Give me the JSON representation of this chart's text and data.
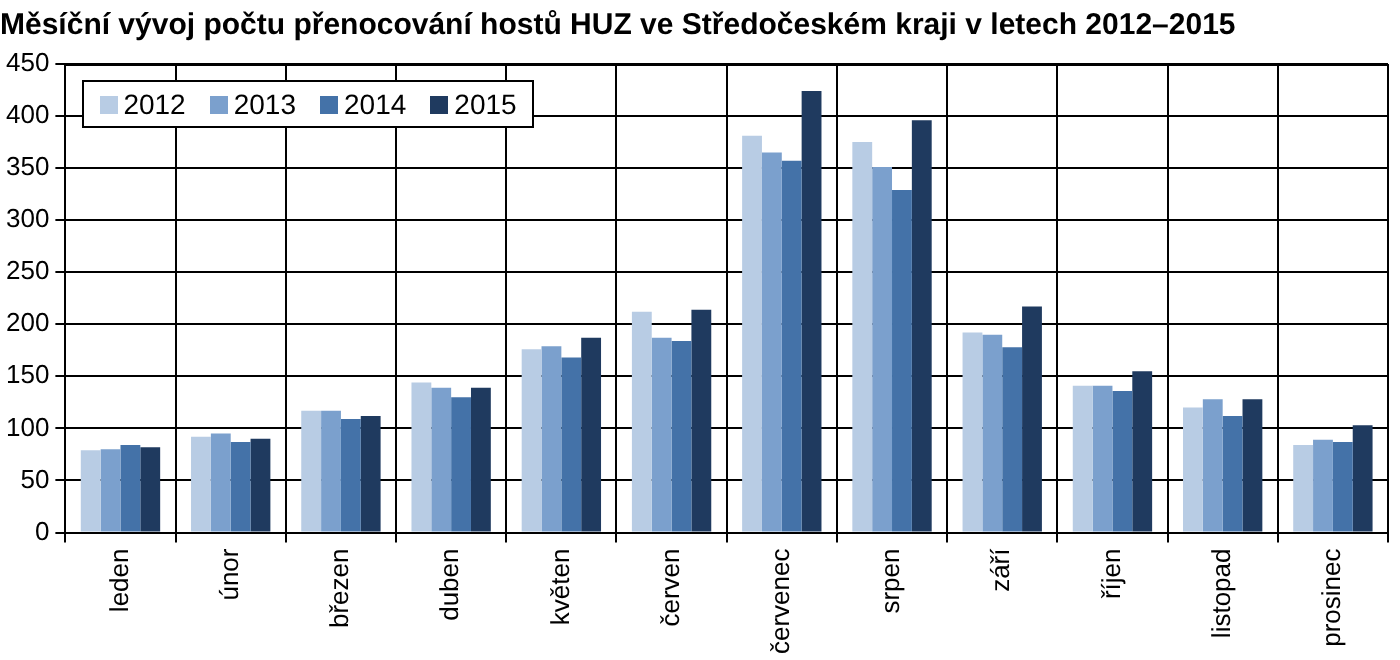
{
  "chart_data": {
    "type": "bar",
    "title": "Měsíční vývoj počtu přenocování hostů HUZ ve Středočeském kraji v letech 2012–2015",
    "categories": [
      "leden",
      "únor",
      "březen",
      "duben",
      "květen",
      "červen",
      "červenec",
      "srpen",
      "září",
      "říjen",
      "listopad",
      "prosinec"
    ],
    "series": [
      {
        "name": "2012",
        "color": "#b8cce4",
        "values": [
          79,
          92,
          117,
          144,
          176,
          212,
          381,
          375,
          192,
          141,
          120,
          84
        ]
      },
      {
        "name": "2013",
        "color": "#7ba0cd",
        "values": [
          80,
          95,
          117,
          139,
          179,
          187,
          365,
          351,
          190,
          141,
          128,
          89
        ]
      },
      {
        "name": "2014",
        "color": "#4472a8",
        "values": [
          84,
          87,
          109,
          130,
          168,
          184,
          357,
          329,
          178,
          136,
          112,
          87
        ]
      },
      {
        "name": "2015",
        "color": "#1f3a5f",
        "values": [
          82,
          90,
          112,
          139,
          187,
          214,
          424,
          396,
          217,
          155,
          128,
          103
        ]
      }
    ],
    "ylim": [
      0,
      450
    ],
    "yticks": [
      0,
      50,
      100,
      150,
      200,
      250,
      300,
      350,
      400,
      450
    ],
    "grid": true,
    "legend": "top left"
  }
}
